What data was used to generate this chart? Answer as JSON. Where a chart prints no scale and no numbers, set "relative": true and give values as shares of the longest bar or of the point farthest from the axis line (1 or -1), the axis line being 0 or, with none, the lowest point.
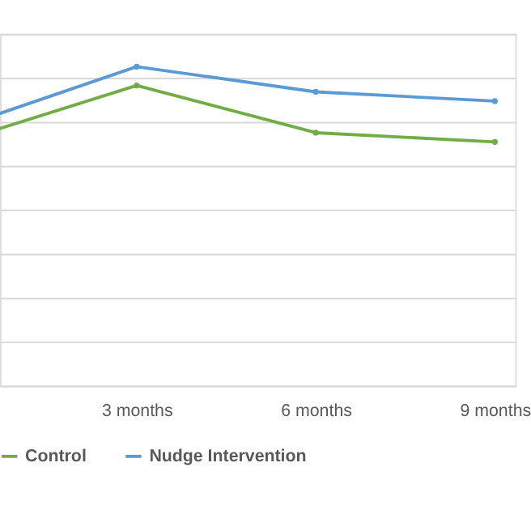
{
  "chart_data": {
    "type": "line",
    "relative": true,
    "categories": [
      null,
      "3 months",
      "6 months",
      "9 months"
    ],
    "series": [
      {
        "name": "Control",
        "color": "#70ad47",
        "values": [
          0.764,
          0.941,
          0.793,
          0.764
        ]
      },
      {
        "name": "Nudge Intervention",
        "color": "#5b9bd5",
        "values": [
          0.808,
          1,
          0.921,
          0.892
        ]
      }
    ],
    "grid": "y",
    "legend": "bottom",
    "marker": "circle",
    "line_style": "solid"
  }
}
